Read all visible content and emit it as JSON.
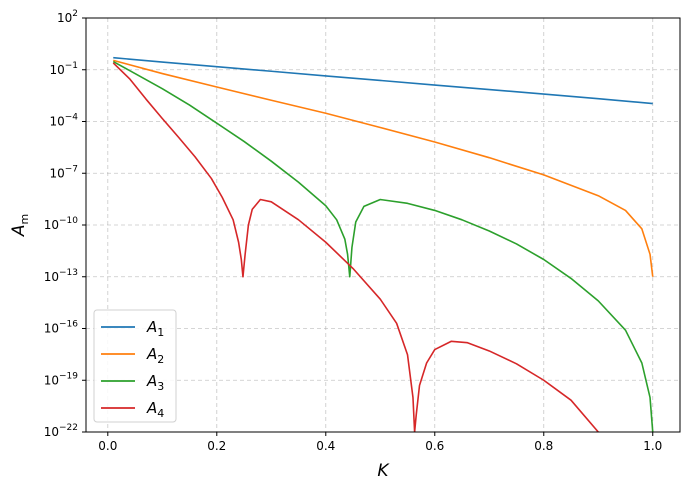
{
  "chart_data": {
    "type": "line",
    "title": "",
    "xlabel": "K",
    "ylabel": "A",
    "ylabel_subscript": "m",
    "xlim": [
      -0.04,
      1.05
    ],
    "ylim": [
      1e-22,
      100
    ],
    "yscale": "log",
    "grid": true,
    "legend": "bottom-left",
    "x_ticks": [
      "0.0",
      "0.2",
      "0.4",
      "0.6",
      "0.8",
      "1.0"
    ],
    "x_tick_values": [
      0.0,
      0.2,
      0.4,
      0.6,
      0.8,
      1.0
    ],
    "y_tick_exponents": [
      -22,
      -19,
      -16,
      -13,
      -10,
      -7,
      -4,
      -1,
      2
    ],
    "series": [
      {
        "name": "A",
        "sub": "1",
        "color": "#1f77b4",
        "points": [
          [
            0.01,
            0.5
          ],
          [
            0.1,
            0.28
          ],
          [
            0.2,
            0.15
          ],
          [
            0.3,
            0.082
          ],
          [
            0.4,
            0.044
          ],
          [
            0.5,
            0.024
          ],
          [
            0.6,
            0.013
          ],
          [
            0.7,
            0.0071
          ],
          [
            0.8,
            0.0039
          ],
          [
            0.9,
            0.0021
          ],
          [
            1.0,
            0.0011
          ]
        ]
      },
      {
        "name": "A",
        "sub": "2",
        "color": "#ff7f0e",
        "points": [
          [
            0.01,
            0.35
          ],
          [
            0.1,
            0.06
          ],
          [
            0.2,
            0.01
          ],
          [
            0.3,
            0.0017
          ],
          [
            0.4,
            0.0003
          ],
          [
            0.5,
            4.5e-05
          ],
          [
            0.6,
            6.5e-06
          ],
          [
            0.7,
            8e-07
          ],
          [
            0.8,
            8e-08
          ],
          [
            0.9,
            5e-09
          ],
          [
            0.95,
            7e-10
          ],
          [
            0.98,
            6e-11
          ],
          [
            0.995,
            2e-12
          ],
          [
            1.0,
            1e-13
          ]
        ]
      },
      {
        "name": "A",
        "sub": "3",
        "color": "#2ca02c",
        "points": [
          [
            0.01,
            0.3
          ],
          [
            0.05,
            0.06
          ],
          [
            0.1,
            0.008
          ],
          [
            0.15,
            0.0009
          ],
          [
            0.2,
            8e-05
          ],
          [
            0.25,
            7e-06
          ],
          [
            0.3,
            5e-07
          ],
          [
            0.35,
            3e-08
          ],
          [
            0.4,
            1.3e-09
          ],
          [
            0.42,
            2e-10
          ],
          [
            0.435,
            1.5e-11
          ],
          [
            0.44,
            2e-12
          ],
          [
            0.444,
            1e-13
          ],
          [
            0.448,
            5e-12
          ],
          [
            0.455,
            1.5e-10
          ],
          [
            0.47,
            1.2e-09
          ],
          [
            0.5,
            3e-09
          ],
          [
            0.55,
            1.8e-09
          ],
          [
            0.6,
            7e-10
          ],
          [
            0.65,
            2e-10
          ],
          [
            0.7,
            4.5e-11
          ],
          [
            0.75,
            8e-12
          ],
          [
            0.8,
            1e-12
          ],
          [
            0.85,
            8e-14
          ],
          [
            0.9,
            4e-15
          ],
          [
            0.95,
            8e-17
          ],
          [
            0.98,
            1e-18
          ],
          [
            0.995,
            1e-20
          ],
          [
            1.0,
            1e-22
          ]
        ]
      },
      {
        "name": "A",
        "sub": "4",
        "color": "#d62728",
        "points": [
          [
            0.01,
            0.25
          ],
          [
            0.04,
            0.03
          ],
          [
            0.07,
            0.002
          ],
          [
            0.1,
            0.00015
          ],
          [
            0.13,
            1.2e-05
          ],
          [
            0.16,
            9e-07
          ],
          [
            0.19,
            5e-08
          ],
          [
            0.21,
            4e-09
          ],
          [
            0.23,
            2e-10
          ],
          [
            0.24,
            1e-11
          ],
          [
            0.245,
            1e-12
          ],
          [
            0.248,
            1e-13
          ],
          [
            0.252,
            2e-12
          ],
          [
            0.258,
            1e-10
          ],
          [
            0.265,
            8e-10
          ],
          [
            0.28,
            3e-09
          ],
          [
            0.3,
            2.2e-09
          ],
          [
            0.35,
            2e-10
          ],
          [
            0.4,
            1e-11
          ],
          [
            0.45,
            3e-13
          ],
          [
            0.5,
            5e-15
          ],
          [
            0.53,
            2e-16
          ],
          [
            0.55,
            3e-18
          ],
          [
            0.56,
            1e-20
          ],
          [
            0.563,
            1e-22
          ],
          [
            0.566,
            1e-21
          ],
          [
            0.572,
            5e-20
          ],
          [
            0.585,
            1e-18
          ],
          [
            0.6,
            6e-18
          ],
          [
            0.63,
            1.8e-17
          ],
          [
            0.66,
            1.5e-17
          ],
          [
            0.7,
            5e-18
          ],
          [
            0.75,
            9e-19
          ],
          [
            0.8,
            1e-19
          ],
          [
            0.85,
            7e-21
          ],
          [
            0.9,
            1e-22
          ]
        ]
      }
    ]
  }
}
